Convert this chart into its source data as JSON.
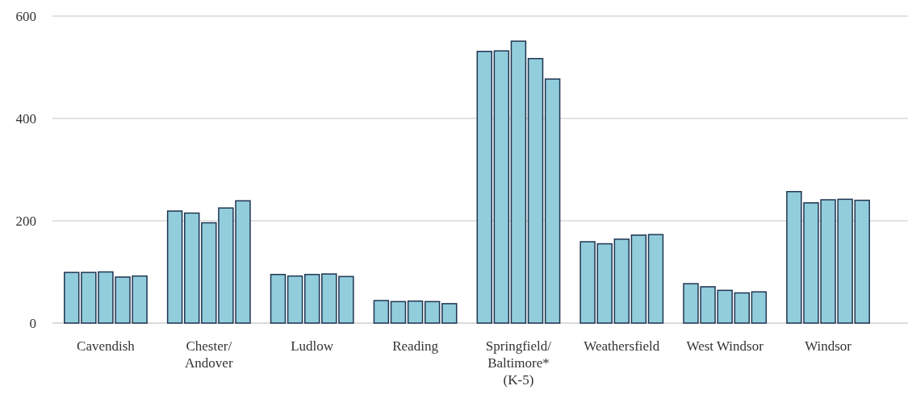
{
  "chart_data": {
    "type": "bar",
    "categories": [
      "Cavendish",
      "Chester/ Andover",
      "Ludlow",
      "Reading",
      "Springfield/ Baltimore* (K-5)",
      "Weathersfield",
      "West Windsor",
      "Windsor"
    ],
    "series": [
      {
        "color": "#92cddc",
        "values": [
          99,
          219,
          95,
          44,
          531,
          159,
          77,
          257
        ]
      },
      {
        "color": "#92cddc",
        "values": [
          99,
          215,
          92,
          42,
          532,
          155,
          71,
          235
        ]
      },
      {
        "color": "#92cddc",
        "values": [
          100,
          196,
          95,
          43,
          551,
          164,
          64,
          241
        ]
      },
      {
        "color": "#92cddc",
        "values": [
          90,
          225,
          96,
          42,
          517,
          172,
          59,
          242
        ]
      },
      {
        "color": "#92cddc",
        "values": [
          92,
          239,
          91,
          38,
          477,
          173,
          61,
          240
        ]
      }
    ],
    "ylim": [
      0,
      600
    ],
    "yticks": [
      0,
      200,
      400,
      600
    ],
    "grid": "y"
  }
}
